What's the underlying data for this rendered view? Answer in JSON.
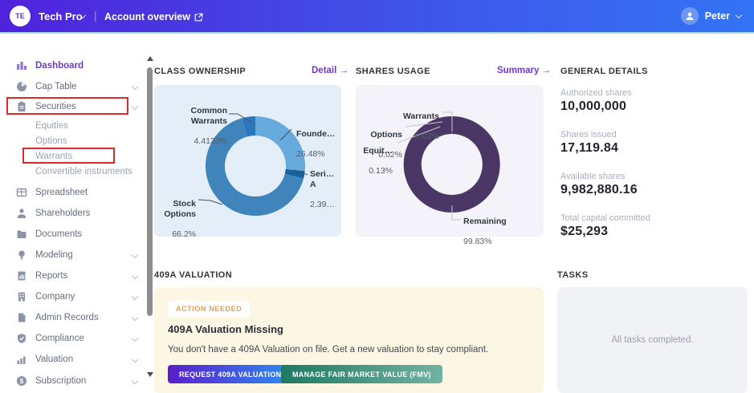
{
  "topbar": {
    "company_initials": "TE",
    "company_name": "Tech Pro",
    "page_link": "Account overview",
    "user_name": "Peter"
  },
  "sidebar": {
    "items": [
      {
        "label": "Dashboard",
        "icon": "dashboard-icon",
        "active": true
      },
      {
        "label": "Cap Table",
        "icon": "cap-table-icon"
      },
      {
        "label": "Securities",
        "icon": "securities-icon",
        "highlighted": true
      },
      {
        "label": "Equities",
        "sub": true
      },
      {
        "label": "Options",
        "sub": true
      },
      {
        "label": "Warrants",
        "sub": true,
        "highlighted": true
      },
      {
        "label": "Convertible instruments",
        "sub": true
      },
      {
        "label": "Spreadsheet",
        "icon": "spreadsheet-icon"
      },
      {
        "label": "Shareholders",
        "icon": "shareholders-icon"
      },
      {
        "label": "Documents",
        "icon": "documents-icon"
      },
      {
        "label": "Modeling",
        "icon": "modeling-icon"
      },
      {
        "label": "Reports",
        "icon": "reports-icon"
      },
      {
        "label": "Company",
        "icon": "company-icon"
      },
      {
        "label": "Admin Records",
        "icon": "admin-records-icon"
      },
      {
        "label": "Compliance",
        "icon": "compliance-icon"
      },
      {
        "label": "Valuation",
        "icon": "valuation-icon"
      },
      {
        "label": "Subscription",
        "icon": "subscription-icon"
      }
    ]
  },
  "main": {
    "class_ownership": {
      "heading": "CLASS OWNERSHIP",
      "link_label": "Detail",
      "link_arrow": "→",
      "labels": [
        {
          "name": "Common\nWarrants",
          "pct": "4.4133%"
        },
        {
          "name": "Founde…",
          "pct": "26.48%"
        },
        {
          "name": "Seri…\nA",
          "pct": "2.39…"
        },
        {
          "name": "Stock\nOptions",
          "pct": "66.2%"
        }
      ]
    },
    "shares_usage": {
      "heading": "SHARES USAGE",
      "link_label": "Summary",
      "link_arrow": "→",
      "labels": [
        {
          "name": "Warrants",
          "pct": "0.02%"
        },
        {
          "name": "Options",
          "pct": "0.02%"
        },
        {
          "name": "Equit…",
          "pct": "0.13%"
        },
        {
          "name": "Remaining",
          "pct": "99.83%"
        }
      ]
    },
    "general_details": {
      "heading": "GENERAL DETAILS",
      "stats": [
        {
          "label": "Authorized shares",
          "value": "10,000,000"
        },
        {
          "label": "Shares issued",
          "value": "17,119.84"
        },
        {
          "label": "Available shares",
          "value": "9,982,880.16"
        },
        {
          "label": "Total capital committed",
          "value": "$25,293"
        }
      ]
    },
    "valuation_409a": {
      "heading": "409A VALUATION",
      "badge": "ACTION NEEDED",
      "title": "409A Valuation Missing",
      "body": "You don't have a 409A Valuation on file. Get a new valuation to stay compliant.",
      "primary_button": "REQUEST 409A VALUATION",
      "secondary_button": "MANAGE FAIR MARKET VALUE (FMV)"
    },
    "tasks": {
      "heading": "TASKS",
      "empty_message": "All tasks completed."
    }
  },
  "chart_data": [
    {
      "type": "pie",
      "variant": "donut",
      "title": "CLASS OWNERSHIP",
      "slices": [
        {
          "label": "Founders",
          "value": 26.48,
          "display": "26.48%",
          "color": "#67aadd"
        },
        {
          "label": "Series A",
          "value": 2.39,
          "display": "2.39…",
          "color": "#15609f"
        },
        {
          "label": "Stock Options",
          "value": 66.2,
          "display": "66.2%",
          "color": "#3f84bb"
        },
        {
          "label": "Common Warrants",
          "value": 4.4133,
          "display": "4.4133%",
          "color": "#2b79bd"
        }
      ]
    },
    {
      "type": "pie",
      "variant": "donut",
      "title": "SHARES USAGE",
      "slices": [
        {
          "label": "Remaining",
          "value": 99.83,
          "display": "99.83%",
          "color": "#4a3766"
        },
        {
          "label": "Equities",
          "value": 0.13,
          "display": "0.13%",
          "color": "#8f7fb0"
        },
        {
          "label": "Options",
          "value": 0.02,
          "display": "0.02%",
          "color": "#b3a8cc"
        },
        {
          "label": "Warrants",
          "value": 0.02,
          "display": "0.02%",
          "color": "#d5cee6"
        }
      ]
    }
  ],
  "colors": {
    "topbar_gradient_start": "#4f22dc",
    "topbar_gradient_end": "#3374f4",
    "topbar_underline": "#a6d9e8",
    "accent_purple": "#7433e0",
    "annotation_red": "#d92b2b",
    "card_chart1_bg": "#e4eef8",
    "card_chart2_bg": "#f4f3f9",
    "card_409a_bg": "#fbf7e4",
    "card_tasks_bg": "#f1f2f6",
    "badge_text": "#dfa04c"
  }
}
